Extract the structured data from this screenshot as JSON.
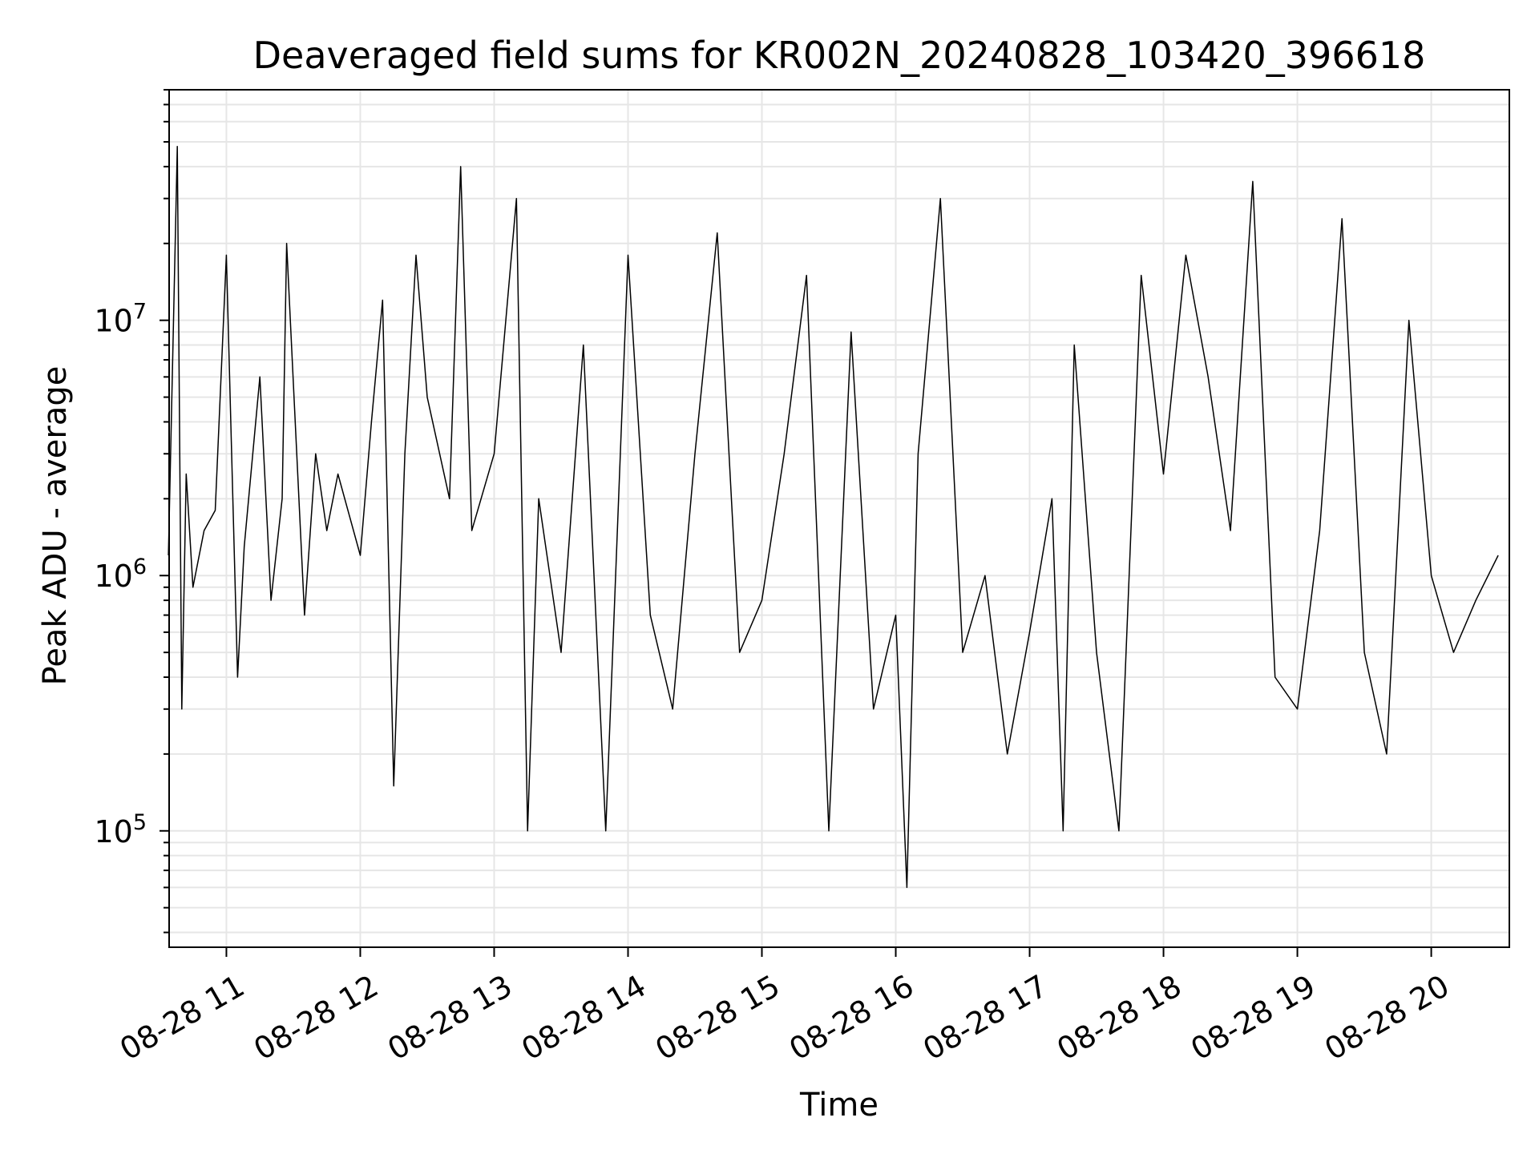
{
  "chart_data": {
    "type": "line",
    "title": "Deaveraged field sums for KR002N_20240828_103420_396618",
    "xlabel": "Time",
    "ylabel": "Peak ADU - average",
    "x_axis": {
      "type": "date",
      "start": "2024-08-28T10:34:20",
      "end": "2024-08-28T20:35:00",
      "ticks": [
        {
          "t": "2024-08-28T11:00",
          "label": "08-28 11"
        },
        {
          "t": "2024-08-28T12:00",
          "label": "08-28 12"
        },
        {
          "t": "2024-08-28T13:00",
          "label": "08-28 13"
        },
        {
          "t": "2024-08-28T14:00",
          "label": "08-28 14"
        },
        {
          "t": "2024-08-28T15:00",
          "label": "08-28 15"
        },
        {
          "t": "2024-08-28T16:00",
          "label": "08-28 16"
        },
        {
          "t": "2024-08-28T17:00",
          "label": "08-28 17"
        },
        {
          "t": "2024-08-28T18:00",
          "label": "08-28 18"
        },
        {
          "t": "2024-08-28T19:00",
          "label": "08-28 19"
        },
        {
          "t": "2024-08-28T20:00",
          "label": "08-28 20"
        }
      ]
    },
    "y_axis": {
      "scale": "log",
      "ylim": [
        35000,
        80000000
      ],
      "ticks": [
        {
          "v": 100000,
          "base": "10",
          "exp": "5"
        },
        {
          "v": 1000000,
          "base": "10",
          "exp": "6"
        },
        {
          "v": 10000000,
          "base": "10",
          "exp": "7"
        }
      ]
    },
    "grid": true,
    "line_color": "#000000",
    "grid_color": "#e6e6e6",
    "series": [
      {
        "x": [
          "2024-08-28T10:34",
          "2024-08-28T10:38",
          "2024-08-28T10:40",
          "2024-08-28T10:42",
          "2024-08-28T10:45",
          "2024-08-28T10:50",
          "2024-08-28T10:55",
          "2024-08-28T11:00",
          "2024-08-28T11:05",
          "2024-08-28T11:08",
          "2024-08-28T11:15",
          "2024-08-28T11:20",
          "2024-08-28T11:25",
          "2024-08-28T11:27",
          "2024-08-28T11:35",
          "2024-08-28T11:40",
          "2024-08-28T11:45",
          "2024-08-28T11:50",
          "2024-08-28T12:00",
          "2024-08-28T12:05",
          "2024-08-28T12:10",
          "2024-08-28T12:15",
          "2024-08-28T12:20",
          "2024-08-28T12:25",
          "2024-08-28T12:30",
          "2024-08-28T12:40",
          "2024-08-28T12:45",
          "2024-08-28T12:50",
          "2024-08-28T13:00",
          "2024-08-28T13:10",
          "2024-08-28T13:15",
          "2024-08-28T13:20",
          "2024-08-28T13:30",
          "2024-08-28T13:40",
          "2024-08-28T13:50",
          "2024-08-28T14:00",
          "2024-08-28T14:10",
          "2024-08-28T14:20",
          "2024-08-28T14:30",
          "2024-08-28T14:40",
          "2024-08-28T14:50",
          "2024-08-28T15:00",
          "2024-08-28T15:10",
          "2024-08-28T15:20",
          "2024-08-28T15:30",
          "2024-08-28T15:40",
          "2024-08-28T15:50",
          "2024-08-28T16:00",
          "2024-08-28T16:05",
          "2024-08-28T16:10",
          "2024-08-28T16:20",
          "2024-08-28T16:30",
          "2024-08-28T16:40",
          "2024-08-28T16:50",
          "2024-08-28T17:00",
          "2024-08-28T17:10",
          "2024-08-28T17:15",
          "2024-08-28T17:20",
          "2024-08-28T17:30",
          "2024-08-28T17:40",
          "2024-08-28T17:50",
          "2024-08-28T18:00",
          "2024-08-28T18:10",
          "2024-08-28T18:20",
          "2024-08-28T18:30",
          "2024-08-28T18:40",
          "2024-08-28T18:50",
          "2024-08-28T19:00",
          "2024-08-28T19:10",
          "2024-08-28T19:20",
          "2024-08-28T19:30",
          "2024-08-28T19:40",
          "2024-08-28T19:50",
          "2024-08-28T20:00",
          "2024-08-28T20:10",
          "2024-08-28T20:20",
          "2024-08-28T20:30"
        ],
        "values": [
          1200000,
          48000000,
          300000,
          2500000,
          900000,
          1500000,
          1800000,
          18000000,
          400000,
          1300000,
          6000000,
          800000,
          2000000,
          20000000,
          700000,
          3000000,
          1500000,
          2500000,
          1200000,
          4000000,
          12000000,
          150000,
          3000000,
          18000000,
          5000000,
          2000000,
          40000000,
          1500000,
          3000000,
          30000000,
          100000,
          2000000,
          500000,
          8000000,
          100000,
          18000000,
          700000,
          300000,
          3000000,
          22000000,
          500000,
          800000,
          3000000,
          15000000,
          100000,
          9000000,
          300000,
          700000,
          60000,
          3000000,
          30000000,
          500000,
          1000000,
          200000,
          600000,
          2000000,
          100000,
          8000000,
          500000,
          100000,
          15000000,
          2500000,
          18000000,
          6000000,
          1500000,
          35000000,
          400000,
          300000,
          1500000,
          25000000,
          500000,
          200000,
          10000000,
          1000000,
          500000,
          800000,
          1200000
        ]
      }
    ]
  }
}
